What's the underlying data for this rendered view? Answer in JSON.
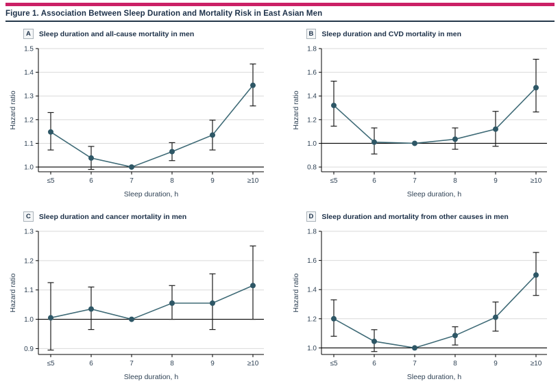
{
  "figure": {
    "title": "Figure 1. Association Between Sleep Duration and Mortality Risk in East Asian Men"
  },
  "colors": {
    "accent_bar": "#cb2066",
    "line": "#3e6a76",
    "marker": "#2e5766",
    "error_bar": "#1c1c1c",
    "grid": "#d9d9d9",
    "axis": "#000000",
    "text": "#2e4154",
    "title": "#1c3048"
  },
  "chart_data": [
    {
      "panel": "A",
      "title": "Sleep duration and all-cause mortality in men",
      "type": "line",
      "xlabel": "Sleep duration, h",
      "ylabel": "Hazard ratio",
      "categories": [
        "≤5",
        "6",
        "7",
        "8",
        "9",
        "≥10"
      ],
      "series": [
        {
          "name": "Hazard ratio (95% CI)",
          "values": [
            1.148,
            1.038,
            1.0,
            1.065,
            1.135,
            1.345
          ],
          "ci_low": [
            1.072,
            0.99,
            null,
            1.027,
            1.072,
            1.258
          ],
          "ci_high": [
            1.23,
            1.087,
            null,
            1.103,
            1.198,
            1.435
          ]
        }
      ],
      "yticks": [
        1.0,
        1.1,
        1.2,
        1.3,
        1.4,
        1.5
      ],
      "ylim": [
        0.98,
        1.5
      ],
      "ref_line": 1.0,
      "grid": true,
      "legend": false
    },
    {
      "panel": "B",
      "title": "Sleep duration and CVD mortality in men",
      "type": "line",
      "xlabel": "Sleep duration, h",
      "ylabel": "Hazard ratio",
      "categories": [
        "≤5",
        "6",
        "7",
        "8",
        "9",
        "≥10"
      ],
      "series": [
        {
          "name": "Hazard ratio (95% CI)",
          "values": [
            1.32,
            1.01,
            1.0,
            1.035,
            1.12,
            1.47
          ],
          "ci_low": [
            1.145,
            0.91,
            null,
            0.95,
            0.975,
            1.265
          ],
          "ci_high": [
            1.525,
            1.13,
            null,
            1.13,
            1.27,
            1.71
          ]
        }
      ],
      "yticks": [
        0.8,
        1.0,
        1.2,
        1.4,
        1.6,
        1.8
      ],
      "ylim": [
        0.76,
        1.8
      ],
      "ref_line": 1.0,
      "grid": true,
      "legend": false
    },
    {
      "panel": "C",
      "title": "Sleep duration and cancer mortality in men",
      "type": "line",
      "xlabel": "Sleep duration, h",
      "ylabel": "Hazard ratio",
      "categories": [
        "≤5",
        "6",
        "7",
        "8",
        "9",
        "≥10"
      ],
      "series": [
        {
          "name": "Hazard ratio (95% CI)",
          "values": [
            1.005,
            1.035,
            1.0,
            1.055,
            1.055,
            1.115
          ],
          "ci_low": [
            0.895,
            0.965,
            null,
            1.0,
            0.965,
            1.0
          ],
          "ci_high": [
            1.125,
            1.11,
            null,
            1.115,
            1.155,
            1.25
          ]
        }
      ],
      "yticks": [
        0.9,
        1.0,
        1.1,
        1.2,
        1.3
      ],
      "ylim": [
        0.88,
        1.3
      ],
      "ref_line": 1.0,
      "grid": true,
      "legend": false
    },
    {
      "panel": "D",
      "title": "Sleep duration and mortality from other causes in men",
      "type": "line",
      "xlabel": "Sleep duration, h",
      "ylabel": "Hazard ratio",
      "categories": [
        "≤5",
        "6",
        "7",
        "8",
        "9",
        "≥10"
      ],
      "series": [
        {
          "name": "Hazard ratio (95% CI)",
          "values": [
            1.2,
            1.045,
            1.0,
            1.085,
            1.21,
            1.5
          ],
          "ci_low": [
            1.08,
            0.975,
            null,
            1.02,
            1.115,
            1.36
          ],
          "ci_high": [
            1.33,
            1.125,
            null,
            1.145,
            1.315,
            1.655
          ]
        }
      ],
      "yticks": [
        1.0,
        1.2,
        1.4,
        1.6,
        1.8
      ],
      "ylim": [
        0.955,
        1.8
      ],
      "ref_line": 1.0,
      "grid": true,
      "legend": false
    }
  ]
}
